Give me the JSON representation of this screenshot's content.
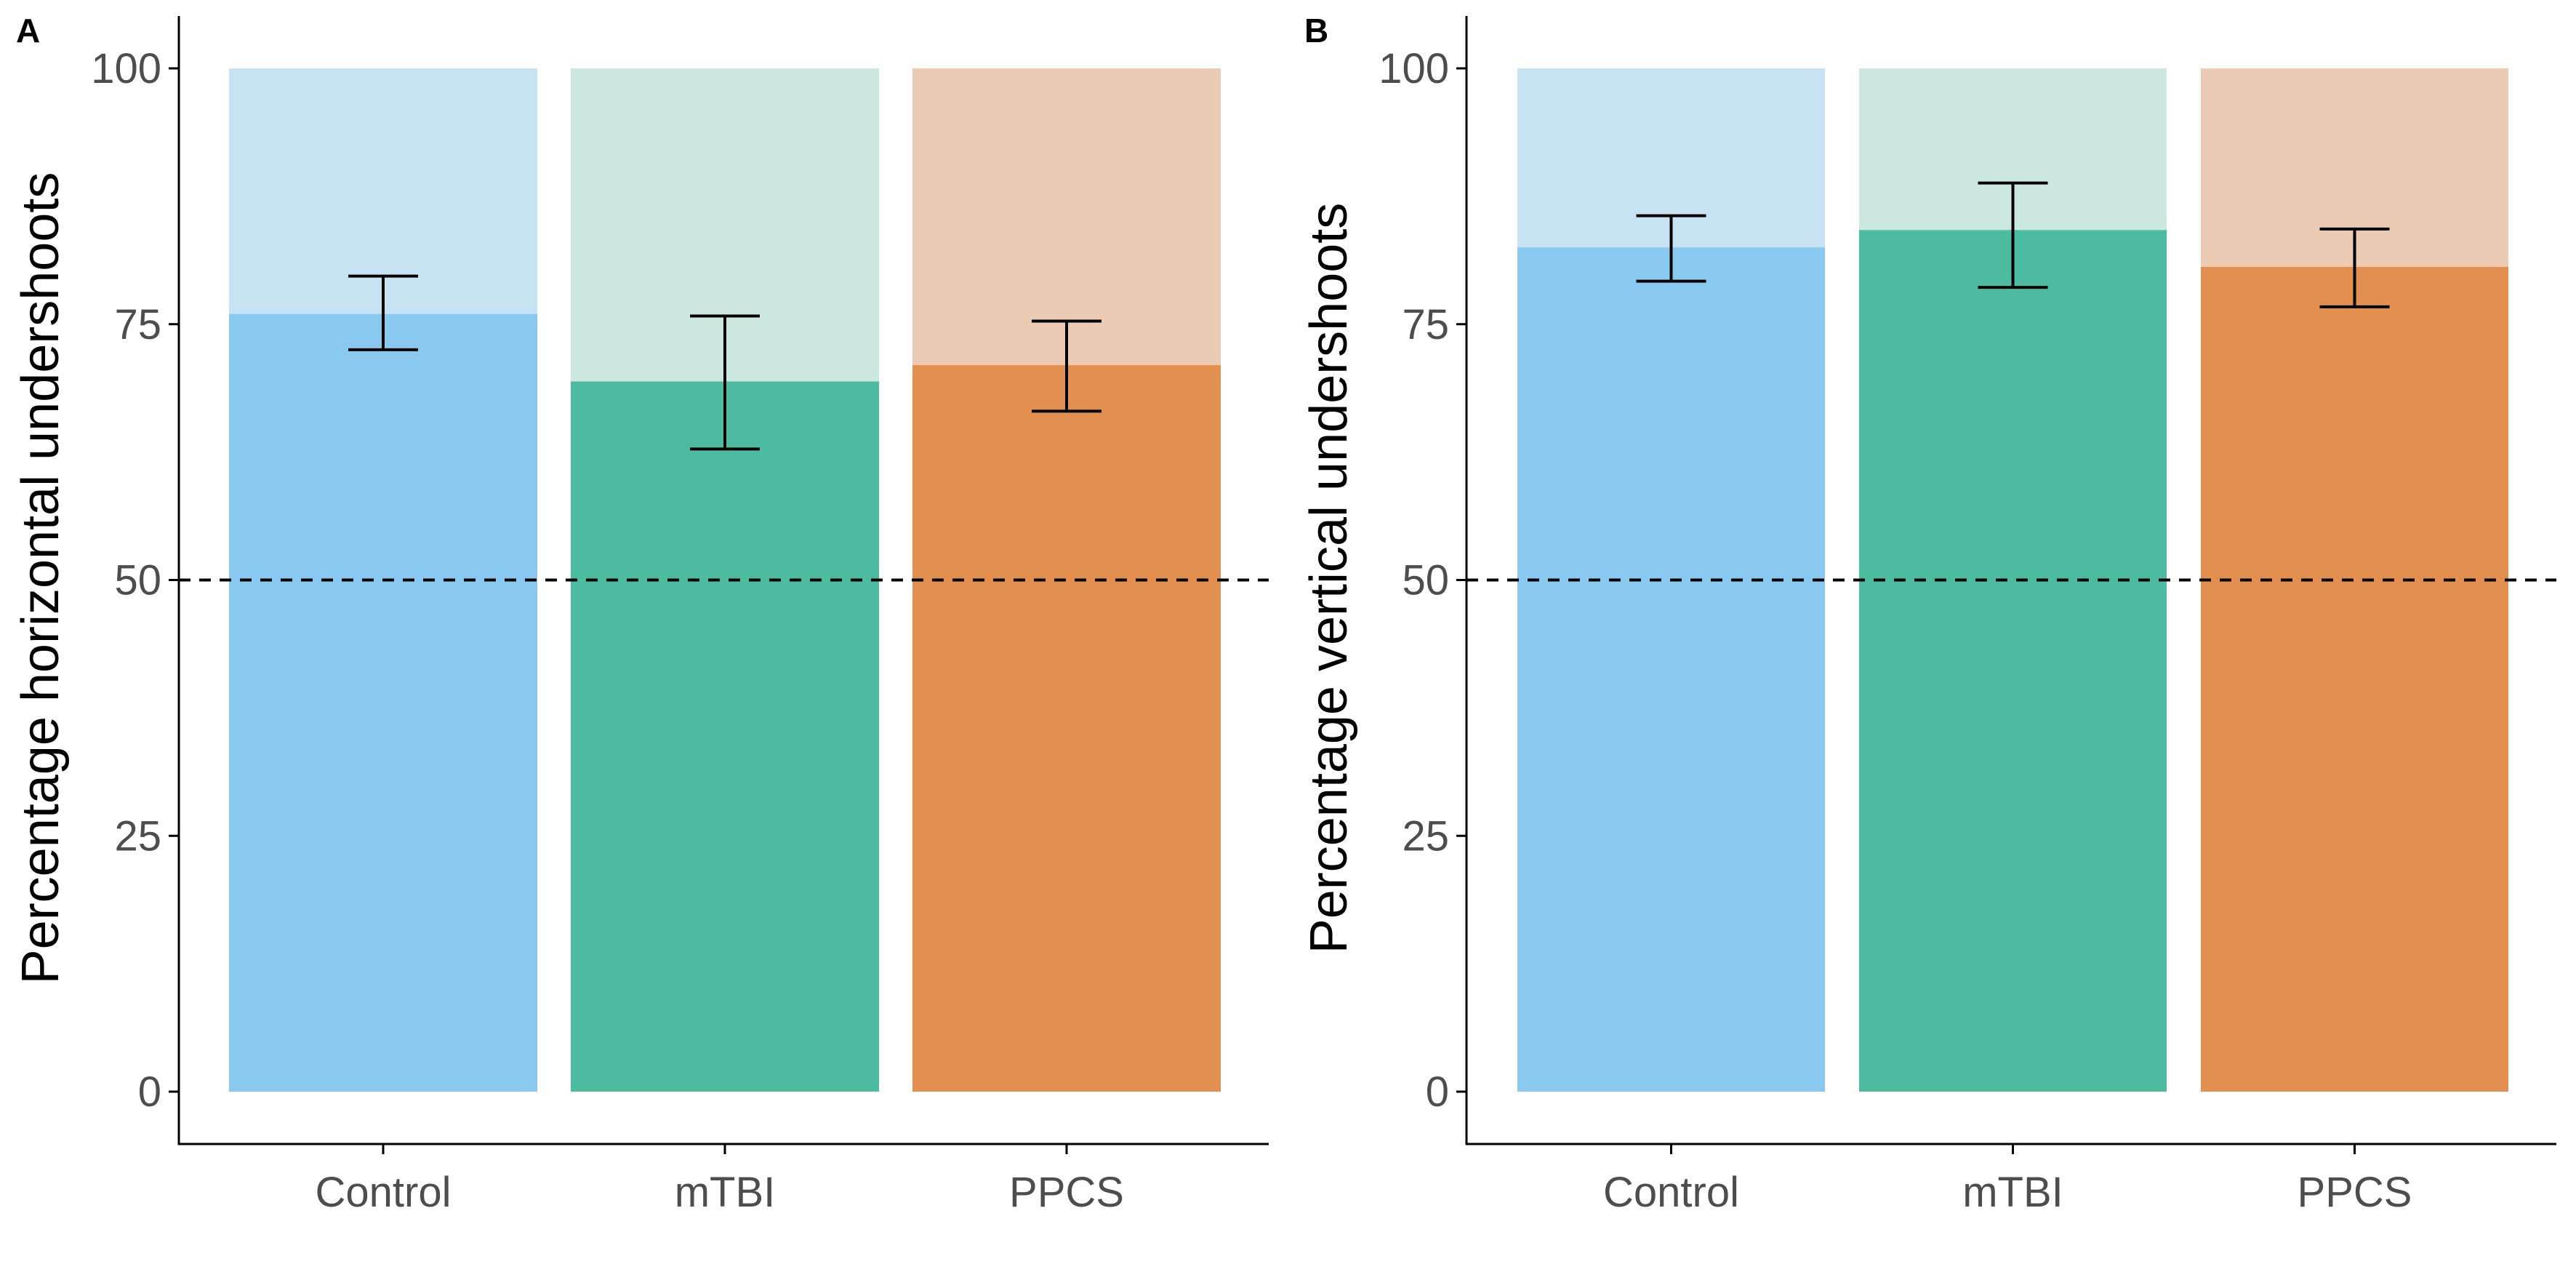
{
  "chart_data": [
    {
      "type": "bar",
      "panel_label": "A",
      "title": "",
      "xlabel": "",
      "ylabel": "Percentage horizontal undershoots",
      "ylim": [
        0,
        105
      ],
      "yticks": [
        0,
        25,
        50,
        75,
        100
      ],
      "categories": [
        "Control",
        "mTBI",
        "PPCS"
      ],
      "values": [
        76,
        69.4,
        71
      ],
      "error_low": [
        72.5,
        62.8,
        66.5
      ],
      "error_high": [
        79.7,
        75.8,
        75.3
      ],
      "background_total": 100,
      "reference_line": 50,
      "grid": false,
      "legend": "none"
    },
    {
      "type": "bar",
      "panel_label": "B",
      "title": "",
      "xlabel": "",
      "ylabel": "Percentage vertical undershoots",
      "ylim": [
        0,
        105
      ],
      "yticks": [
        0,
        25,
        50,
        75,
        100
      ],
      "categories": [
        "Control",
        "mTBI",
        "PPCS"
      ],
      "values": [
        82.5,
        84.2,
        80.6
      ],
      "error_low": [
        79.2,
        78.6,
        76.7
      ],
      "error_high": [
        85.6,
        88.8,
        84.3
      ],
      "background_total": 100,
      "reference_line": 50,
      "grid": false,
      "legend": "none"
    }
  ],
  "colors": {
    "bars": [
      "#89c9ef",
      "#4dbb9f",
      "#e38f4f"
    ],
    "backgrounds": [
      "#c6e2f3",
      "#cce7e0",
      "#ebcbb4"
    ],
    "axis": "#000000",
    "tick_text": "#4d4d4d"
  }
}
